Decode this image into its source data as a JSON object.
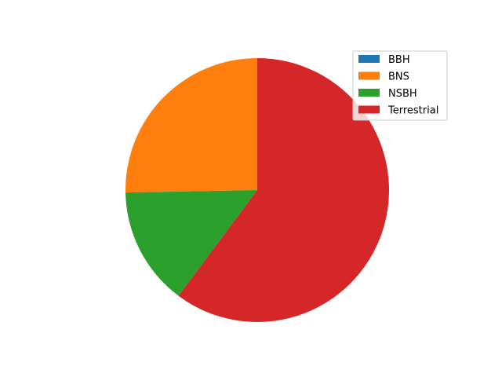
{
  "chart_data": {
    "type": "pie",
    "title": "",
    "categories": [
      "BBH",
      "BNS",
      "NSBH",
      "Terrestrial"
    ],
    "values": [
      0.0,
      25.3,
      14.5,
      60.2
    ],
    "colors": [
      "#1f77b4",
      "#ff7f0e",
      "#2ca02c",
      "#d62728"
    ],
    "start_angle_deg": 90,
    "direction": "counterclockwise",
    "legend": {
      "placement": "upper-right",
      "entries": [
        "BBH",
        "BNS",
        "NSBH",
        "Terrestrial"
      ]
    }
  }
}
